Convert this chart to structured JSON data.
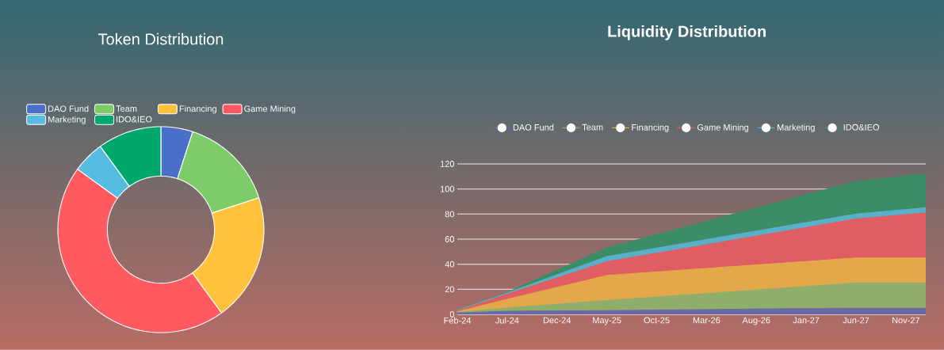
{
  "chart_data": [
    {
      "type": "donut",
      "title": "Token Distribution",
      "categories": [
        "DAO Fund",
        "Team",
        "Financing",
        "Game Mining",
        "Marketing",
        "IDO&IEO"
      ],
      "values": [
        5,
        15,
        20,
        45,
        5,
        10
      ],
      "colors": [
        "#4a6fc9",
        "#7ecb6a",
        "#ffc23a",
        "#ff5a5f",
        "#56bde0",
        "#00a86b"
      ],
      "legend": "top"
    },
    {
      "type": "area",
      "title": "Liquidity Distribution",
      "stacked": true,
      "x": [
        "2024-02",
        "2024-07",
        "2025-05",
        "2027-06",
        "2028-01"
      ],
      "series": [
        {
          "name": "DAO Fund",
          "color": "#6a6aa8",
          "values": [
            1,
            2.5,
            3,
            5,
            5
          ]
        },
        {
          "name": "Team",
          "color": "#8fae6a",
          "values": [
            0.5,
            2.5,
            8,
            20,
            20
          ]
        },
        {
          "name": "Financing",
          "color": "#e3a84c",
          "values": [
            0.5,
            7,
            20,
            20,
            20
          ]
        },
        {
          "name": "Game Mining",
          "color": "#e05d62",
          "values": [
            0.5,
            4,
            11,
            31,
            36
          ]
        },
        {
          "name": "Marketing",
          "color": "#5ab0c8",
          "values": [
            0.5,
            1,
            4,
            4,
            4
          ]
        },
        {
          "name": "IDO&IEO",
          "color": "#3d8c68",
          "values": [
            0,
            0.5,
            7,
            26,
            27
          ]
        }
      ],
      "xlim": [
        "2024-02",
        "2028-01"
      ],
      "xticks": [
        {
          "value": "2024-02",
          "label": "Feb-24"
        },
        {
          "value": "2024-07",
          "label": "Jul-24"
        },
        {
          "value": "2024-12",
          "label": "Dec-24"
        },
        {
          "value": "2025-05",
          "label": "May-25"
        },
        {
          "value": "2025-10",
          "label": "Oct-25"
        },
        {
          "value": "2026-03",
          "label": "Mar-26"
        },
        {
          "value": "2026-08",
          "label": "Aug-26"
        },
        {
          "value": "2027-01",
          "label": "Jan-27"
        },
        {
          "value": "2027-06",
          "label": "Jun-27"
        },
        {
          "value": "2027-11",
          "label": "Nov-27"
        }
      ],
      "ylim": [
        0,
        120
      ],
      "yticks": [
        0,
        20,
        40,
        60,
        80,
        100,
        120
      ],
      "grid": "y",
      "legend": "top"
    }
  ]
}
